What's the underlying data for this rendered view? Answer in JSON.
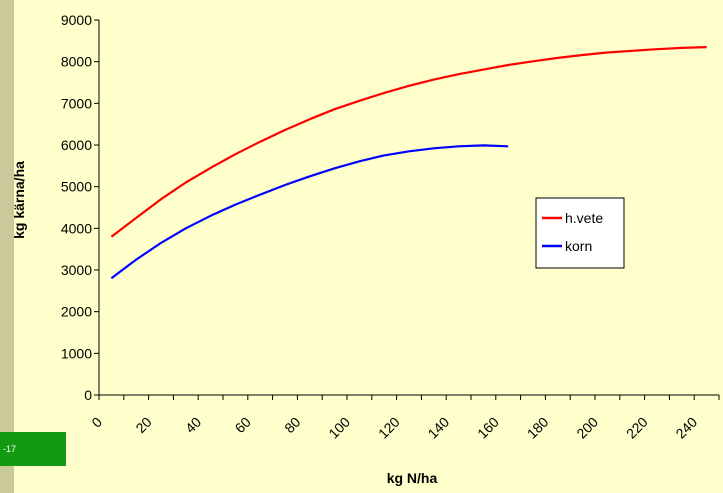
{
  "slide": {
    "badge_text": "-17"
  },
  "colors": {
    "background": "#ffffcc",
    "left_strip": "#c9c99a",
    "badge": "#129a12"
  },
  "chart_data": {
    "type": "line",
    "title": "",
    "xlabel": "kg N/ha",
    "ylabel": "kg kärna/ha",
    "xlim": [
      0,
      250
    ],
    "ylim": [
      0,
      9000
    ],
    "x_ticks": [
      0,
      20,
      40,
      60,
      80,
      100,
      120,
      140,
      160,
      180,
      200,
      220,
      240
    ],
    "y_ticks": [
      0,
      1000,
      2000,
      3000,
      4000,
      5000,
      6000,
      7000,
      8000,
      9000
    ],
    "grid": false,
    "legend_position": "right-middle",
    "series": [
      {
        "name": "h.vete",
        "color": "#ff0000",
        "x": [
          5,
          15,
          25,
          35,
          45,
          55,
          65,
          75,
          85,
          95,
          105,
          115,
          125,
          135,
          145,
          155,
          165,
          175,
          185,
          195,
          205,
          215,
          225,
          235,
          245
        ],
        "y": [
          3800,
          4250,
          4700,
          5100,
          5450,
          5780,
          6080,
          6360,
          6620,
          6860,
          7060,
          7250,
          7420,
          7570,
          7700,
          7810,
          7920,
          8010,
          8090,
          8160,
          8220,
          8260,
          8300,
          8330,
          8350
        ]
      },
      {
        "name": "korn",
        "color": "#0000ff",
        "x": [
          5,
          15,
          25,
          35,
          45,
          55,
          65,
          75,
          85,
          95,
          105,
          115,
          125,
          135,
          145,
          155,
          165
        ],
        "y": [
          2800,
          3250,
          3650,
          4000,
          4300,
          4570,
          4810,
          5040,
          5250,
          5440,
          5610,
          5750,
          5850,
          5920,
          5970,
          5990,
          5970
        ]
      }
    ]
  }
}
